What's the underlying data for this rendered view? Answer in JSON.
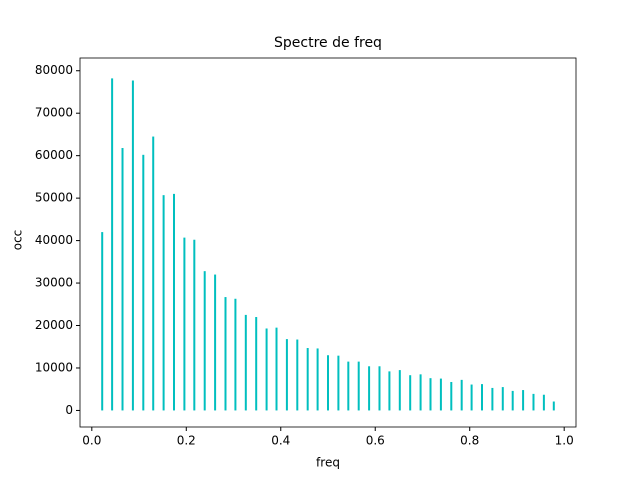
{
  "chart_data": {
    "type": "bar",
    "title": "Spectre de freq",
    "xlabel": "freq",
    "ylabel": "occ",
    "color": "#00bfbf",
    "x": [
      0.022,
      0.043,
      0.065,
      0.087,
      0.109,
      0.13,
      0.152,
      0.174,
      0.196,
      0.217,
      0.239,
      0.261,
      0.283,
      0.304,
      0.326,
      0.348,
      0.37,
      0.391,
      0.413,
      0.435,
      0.457,
      0.478,
      0.5,
      0.522,
      0.543,
      0.565,
      0.587,
      0.609,
      0.63,
      0.652,
      0.674,
      0.696,
      0.717,
      0.739,
      0.761,
      0.783,
      0.804,
      0.826,
      0.848,
      0.87,
      0.891,
      0.913,
      0.935,
      0.957,
      0.978
    ],
    "values": [
      42000,
      78200,
      61800,
      77700,
      60200,
      64500,
      50700,
      51000,
      40700,
      40200,
      32800,
      32000,
      26700,
      26300,
      22500,
      22000,
      19300,
      19500,
      16800,
      16700,
      14700,
      14600,
      13000,
      12900,
      11500,
      11500,
      10400,
      10400,
      9200,
      9500,
      8300,
      8500,
      7600,
      7500,
      6700,
      7200,
      6100,
      6200,
      5300,
      5500,
      4600,
      4800,
      3900,
      3700,
      2100
    ],
    "xlim": [
      -0.025,
      1.025
    ],
    "ylim": [
      -3900,
      83000
    ],
    "xticks": [
      {
        "value": 0,
        "label": "0.0"
      },
      0.2,
      0.4,
      0.6,
      0.8,
      {
        "value": 1,
        "label": "1.0"
      }
    ],
    "yticks": [
      0,
      10000,
      20000,
      30000,
      40000,
      50000,
      60000,
      70000,
      80000
    ]
  }
}
